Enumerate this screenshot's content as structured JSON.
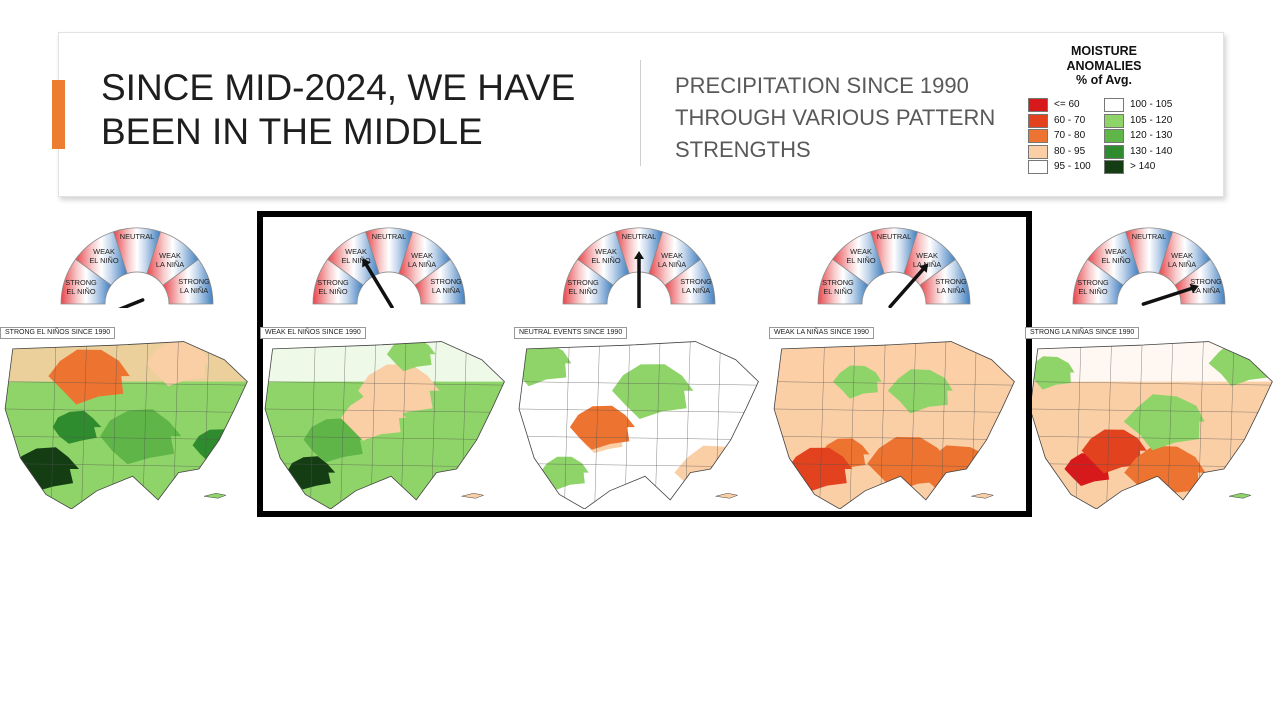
{
  "header": {
    "title": "SINCE MID-2024, WE HAVE BEEN IN THE MIDDLE",
    "subtitle": "PRECIPITATION SINCE 1990 THROUGH VARIOUS PATTERN STRENGTHS",
    "accent_color": "#ed7d31"
  },
  "legend": {
    "title_lines": [
      "MOISTURE",
      "ANOMALIES",
      "% of Avg."
    ],
    "items": [
      {
        "label": "<= 60",
        "color": "#d7191c"
      },
      {
        "label": "60 - 70",
        "color": "#e3421f"
      },
      {
        "label": "70 - 80",
        "color": "#ed7330"
      },
      {
        "label": "80 - 95",
        "color": "#fbcfa6"
      },
      {
        "label": "95 - 100",
        "color": "#ffffff"
      },
      {
        "label": "100 - 105",
        "color": "#ffffff"
      },
      {
        "label": "105 - 120",
        "color": "#8fd468"
      },
      {
        "label": "120 - 130",
        "color": "#5fb547"
      },
      {
        "label": "130 - 140",
        "color": "#2e8b2e"
      },
      {
        "label": "> 140",
        "color": "#143d14"
      }
    ]
  },
  "dial": {
    "labels": {
      "neutral": "NEUTRAL",
      "weak_el_nino": [
        "WEAK",
        "EL NIÑO"
      ],
      "weak_la_nina": [
        "WEAK",
        "LA NIÑA"
      ],
      "strong_el_nino": [
        "STRONG",
        "EL NIÑO"
      ],
      "strong_la_nina": [
        "STRONG",
        "LA NIÑA"
      ]
    },
    "colors": {
      "el_nino": "#e8474c",
      "neutral": "#ffffff",
      "la_nina": "#3f7fc0"
    }
  },
  "panels": [
    {
      "label": "STRONG EL NIÑOS SINCE 1990",
      "phase": "strong-el-nino"
    },
    {
      "label": "WEAK EL NIÑOS SINCE 1990",
      "phase": "weak-el-nino"
    },
    {
      "label": "NEUTRAL EVENTS SINCE 1990",
      "phase": "neutral"
    },
    {
      "label": "WEAK LA NIÑAS SINCE 1990",
      "phase": "weak-la-nina"
    },
    {
      "label": "STRONG LA NIÑAS SINCE 1990",
      "phase": "strong-la-nina"
    }
  ]
}
